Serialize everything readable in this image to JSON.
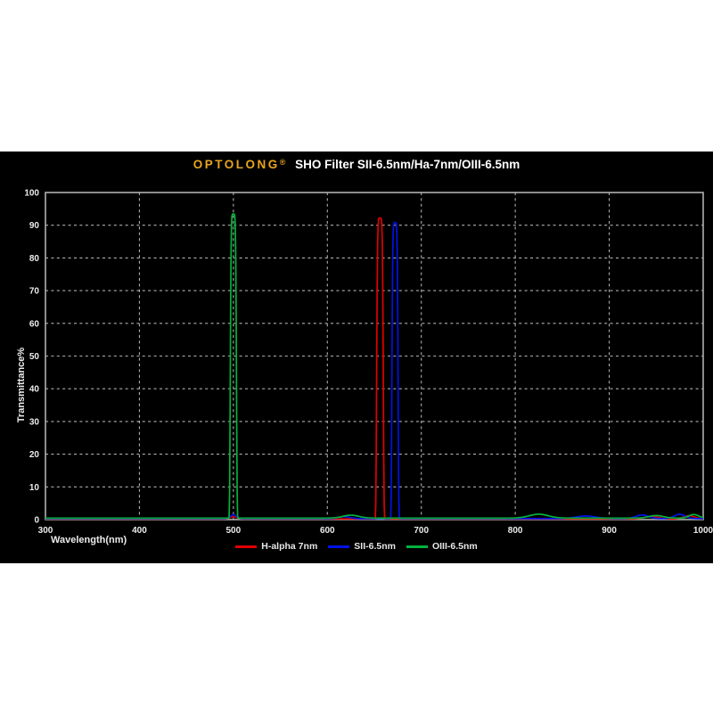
{
  "title": {
    "brand": "OPTOLONG",
    "registered": "®",
    "text": "SHO Filter SII-6.5nm/Ha-7nm/OIII-6.5nm",
    "brand_color": "#e8a51e"
  },
  "panel": {
    "background": "#000000",
    "border_color": "#b0b0b0",
    "grid_color": "#d0d0d0",
    "text_color": "#ececec"
  },
  "chart_data": {
    "type": "line",
    "title": "OPTOLONG® SHO Filter SII-6.5nm/Ha-7nm/OIII-6.5nm",
    "xlabel": "Wavelength(nm)",
    "ylabel": "Transmittance%",
    "xlim": [
      300,
      1000
    ],
    "ylim": [
      0,
      100
    ],
    "x_ticks": [
      300,
      400,
      500,
      600,
      700,
      800,
      900,
      1000
    ],
    "y_ticks": [
      0,
      10,
      20,
      30,
      40,
      50,
      60,
      70,
      80,
      90,
      100
    ],
    "grid": "dashed",
    "legend_position": "bottom-center",
    "series": [
      {
        "name": "H-alpha 7nm",
        "color": "#e10000",
        "peak": {
          "center_nm": 656,
          "fwhm_nm": 7,
          "peak_transmission_pct": 92
        },
        "baseline_pct": 0.2,
        "minor_features": [
          {
            "center_nm": 500,
            "fwhm_nm": 8,
            "height_pct": 0.7
          },
          {
            "center_nm": 945,
            "fwhm_nm": 18,
            "height_pct": 0.8
          },
          {
            "center_nm": 985,
            "fwhm_nm": 14,
            "height_pct": 1.0
          }
        ]
      },
      {
        "name": "SII-6.5nm",
        "color": "#0013e6",
        "peak": {
          "center_nm": 672,
          "fwhm_nm": 6.5,
          "peak_transmission_pct": 90.5
        },
        "baseline_pct": 0.3,
        "minor_features": [
          {
            "center_nm": 500,
            "fwhm_nm": 7,
            "height_pct": 1.2
          },
          {
            "center_nm": 618,
            "fwhm_nm": 14,
            "height_pct": 0.6
          },
          {
            "center_nm": 875,
            "fwhm_nm": 25,
            "height_pct": 0.8
          },
          {
            "center_nm": 935,
            "fwhm_nm": 16,
            "height_pct": 1.1
          },
          {
            "center_nm": 975,
            "fwhm_nm": 14,
            "height_pct": 1.3
          }
        ]
      },
      {
        "name": "OIII-6.5nm",
        "color": "#00b33c",
        "peak": {
          "center_nm": 500,
          "fwhm_nm": 6.5,
          "peak_transmission_pct": 93
        },
        "baseline_pct": 0.45,
        "minor_features": [
          {
            "center_nm": 625,
            "fwhm_nm": 20,
            "height_pct": 0.9
          },
          {
            "center_nm": 825,
            "fwhm_nm": 24,
            "height_pct": 1.2
          },
          {
            "center_nm": 950,
            "fwhm_nm": 18,
            "height_pct": 0.8
          },
          {
            "center_nm": 990,
            "fwhm_nm": 12,
            "height_pct": 1.1
          }
        ]
      }
    ]
  }
}
